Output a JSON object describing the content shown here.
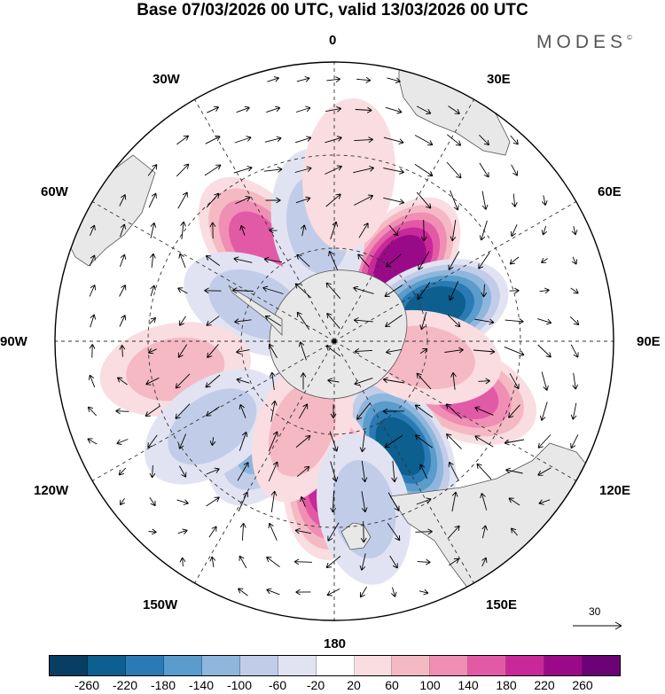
{
  "title": "Base 07/03/2026 00 UTC, valid 13/03/2026 00 UTC",
  "brand": "MODES",
  "brand_mark": "©",
  "map": {
    "projection": "south-polar-stereographic",
    "longitude_labels": {
      "top": "0",
      "top_right": "30E",
      "right_upper": "60E",
      "right": "90E",
      "right_lower": "120E",
      "bottom_right": "150E",
      "bottom": "180",
      "bottom_left": "150W",
      "left_lower": "120W",
      "left": "90W",
      "left_upper": "60W",
      "top_left": "30W"
    },
    "reference_vector": "30",
    "land_color": "#e8e8e8",
    "anomaly_centers": [
      {
        "lon": 40,
        "lat": -57,
        "value": 230
      },
      {
        "lon": 72,
        "lat": -56,
        "value": -220
      },
      {
        "lon": 112,
        "lat": -45,
        "value": 140
      },
      {
        "lon": 148,
        "lat": -50,
        "value": -220
      },
      {
        "lon": -178,
        "lat": -44,
        "value": 180
      },
      {
        "lon": -145,
        "lat": -52,
        "value": -110
      },
      {
        "lon": -38,
        "lat": -50,
        "value": 140
      },
      {
        "lon": -8,
        "lat": -52,
        "value": -70
      },
      {
        "lon": -65,
        "lat": -62,
        "value": -90
      },
      {
        "lon": -100,
        "lat": -38,
        "value": 60
      },
      {
        "lon": -125,
        "lat": -42,
        "value": -60
      },
      {
        "lon": 100,
        "lat": -60,
        "value": 80
      },
      {
        "lon": -160,
        "lat": -60,
        "value": 70
      },
      {
        "lon": 5,
        "lat": -36,
        "value": 50
      },
      {
        "lon": 170,
        "lat": -35,
        "value": -60
      }
    ]
  },
  "colorbar": {
    "colors": [
      "#083e63",
      "#0d5f8f",
      "#2a7bb5",
      "#5a9ccc",
      "#8fb6dc",
      "#c1cde8",
      "#e2e3f2",
      "#ffffff",
      "#f9dde0",
      "#f5b9c4",
      "#f08eb4",
      "#e25aa6",
      "#c8289a",
      "#9a0a88",
      "#6b0275"
    ],
    "labels": [
      "-260",
      "-220",
      "-180",
      "-140",
      "-100",
      "-60",
      "-20",
      "20",
      "60",
      "100",
      "140",
      "180",
      "220",
      "260"
    ]
  }
}
